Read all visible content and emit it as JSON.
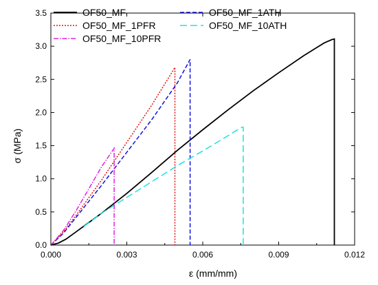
{
  "chart_data": {
    "type": "line",
    "xlabel": "ε (mm/mm)",
    "ylabel": "σ (MPa)",
    "xlim": [
      0,
      0.012
    ],
    "ylim": [
      0,
      3.5
    ],
    "xticks": [
      0.0,
      0.003,
      0.006,
      0.009,
      0.012
    ],
    "xtick_labels": [
      "0.000",
      "0.003",
      "0.006",
      "0.009",
      "0.012"
    ],
    "yticks": [
      0.0,
      0.5,
      1.0,
      1.5,
      2.0,
      2.5,
      3.0,
      3.5
    ],
    "ytick_labels": [
      "0.0",
      "0.5",
      "1.0",
      "1.5",
      "2.0",
      "2.5",
      "3.0",
      "3.5"
    ],
    "grid": false,
    "legend_position": "top",
    "series": [
      {
        "name": "OF50_MF",
        "color": "#000000",
        "dash": "solid",
        "x": [
          0,
          0.0003,
          0.0006,
          0.001,
          0.002,
          0.003,
          0.004,
          0.005,
          0.006,
          0.007,
          0.008,
          0.009,
          0.01,
          0.0105,
          0.0108,
          0.0111,
          0.0112,
          0.0112
        ],
        "y": [
          0,
          0.03,
          0.09,
          0.2,
          0.48,
          0.78,
          1.1,
          1.43,
          1.74,
          2.04,
          2.33,
          2.6,
          2.86,
          2.98,
          3.05,
          3.1,
          3.11,
          0.0
        ]
      },
      {
        "name": "OF50_MF_1ATH",
        "color": "#1010e0",
        "dash": "dashed",
        "x": [
          0,
          0.0005,
          0.001,
          0.002,
          0.003,
          0.004,
          0.005,
          0.0055,
          0.0055
        ],
        "y": [
          0,
          0.18,
          0.42,
          0.9,
          1.4,
          1.9,
          2.45,
          2.8,
          0.0
        ]
      },
      {
        "name": "OF50_MF_1PFR",
        "color": "#e01010",
        "dash": "dotted",
        "x": [
          0,
          0.0005,
          0.001,
          0.002,
          0.003,
          0.004,
          0.0049,
          0.0049
        ],
        "y": [
          0,
          0.2,
          0.45,
          0.98,
          1.55,
          2.12,
          2.68,
          0.0
        ]
      },
      {
        "name": "OF50_MF_10ATH",
        "color": "#20e0e0",
        "dash": "longdash",
        "x": [
          0.0013,
          0.002,
          0.003,
          0.004,
          0.005,
          0.006,
          0.007,
          0.0075,
          0.0076,
          0.0076
        ],
        "y": [
          0.28,
          0.48,
          0.72,
          0.96,
          1.2,
          1.42,
          1.65,
          1.77,
          1.78,
          0.0
        ]
      },
      {
        "name": "OF50_MF_10PFR",
        "color": "#e020e0",
        "dash": "dashdot",
        "x": [
          0,
          0.0005,
          0.001,
          0.0015,
          0.002,
          0.0025,
          0.0025
        ],
        "y": [
          0,
          0.22,
          0.52,
          0.85,
          1.18,
          1.46,
          0.0
        ]
      }
    ]
  }
}
